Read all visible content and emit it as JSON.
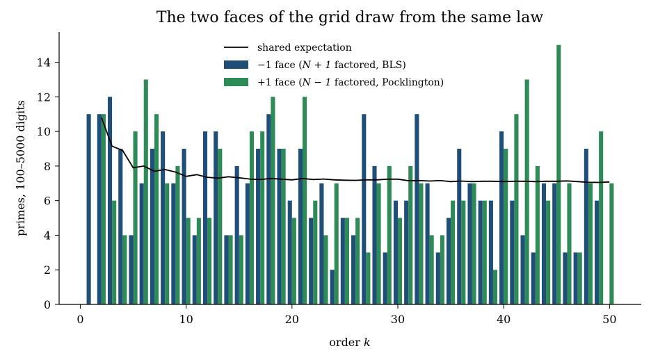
{
  "chart_data": {
    "type": "bar",
    "title": "The two faces of the grid draw from the same law",
    "xlabel": "order k",
    "ylabel": "primes, 100–5000 digits",
    "xlim": [
      -2,
      53
    ],
    "ylim": [
      0,
      15.75
    ],
    "xticks": [
      0,
      10,
      20,
      30,
      40,
      50
    ],
    "yticks": [
      0,
      2,
      4,
      6,
      8,
      10,
      12,
      14
    ],
    "legend_position": "top-center",
    "x": [
      1,
      2,
      3,
      4,
      5,
      6,
      7,
      8,
      9,
      10,
      11,
      12,
      13,
      14,
      15,
      16,
      17,
      18,
      19,
      20,
      21,
      22,
      23,
      24,
      25,
      26,
      27,
      28,
      29,
      30,
      31,
      32,
      33,
      34,
      35,
      36,
      37,
      38,
      39,
      40,
      41,
      42,
      43,
      44,
      45,
      46,
      47,
      48,
      49,
      50
    ],
    "series": [
      {
        "name": "−1 face (N + 1 factored, BLS)",
        "color": "#1f4e79",
        "values": [
          11,
          11,
          12,
          9,
          4,
          7,
          9,
          10,
          7,
          9,
          4,
          10,
          10,
          4,
          8,
          7,
          9,
          11,
          9,
          6,
          9,
          5,
          7,
          2,
          5,
          4,
          11,
          8,
          3,
          6,
          6,
          11,
          7,
          3,
          5,
          9,
          7,
          6,
          6,
          10,
          6,
          4,
          3,
          7,
          7,
          3,
          3,
          9,
          6,
          0
        ]
      },
      {
        "name": "+1 face (N − 1 factored, Pocklington)",
        "color": "#2e8b57",
        "values": [
          0,
          11,
          6,
          4,
          10,
          13,
          11,
          7,
          8,
          5,
          5,
          5,
          9,
          4,
          4,
          10,
          10,
          12,
          9,
          5,
          12,
          6,
          4,
          7,
          5,
          5,
          3,
          7,
          8,
          5,
          8,
          7,
          4,
          4,
          6,
          6,
          7,
          6,
          2,
          9,
          11,
          13,
          8,
          6,
          15,
          7,
          3,
          7,
          10,
          7
        ]
      },
      {
        "name": "shared expectation",
        "color": "#000000",
        "type": "line",
        "x": [
          2,
          3,
          4,
          5,
          6,
          7,
          8,
          9,
          10,
          11,
          12,
          13,
          14,
          15,
          16,
          17,
          18,
          19,
          20,
          21,
          22,
          23,
          24,
          25,
          26,
          27,
          28,
          29,
          30,
          31,
          32,
          33,
          34,
          35,
          36,
          37,
          38,
          39,
          40,
          41,
          42,
          43,
          44,
          45,
          46,
          47,
          48,
          49,
          50
        ],
        "values": [
          10.8,
          9.15,
          8.9,
          7.9,
          8.0,
          7.7,
          7.8,
          7.65,
          7.4,
          7.5,
          7.35,
          7.3,
          7.38,
          7.32,
          7.25,
          7.22,
          7.28,
          7.24,
          7.2,
          7.28,
          7.22,
          7.25,
          7.2,
          7.18,
          7.17,
          7.2,
          7.2,
          7.24,
          7.24,
          7.15,
          7.16,
          7.13,
          7.16,
          7.1,
          7.13,
          7.1,
          7.12,
          7.12,
          7.1,
          7.12,
          7.12,
          7.1,
          7.12,
          7.12,
          7.14,
          7.1,
          7.06,
          7.05,
          7.08
        ]
      }
    ]
  },
  "legend": {
    "line_label": "shared expectation",
    "minus_prefix": "−1 face (",
    "minus_math": "N + 1",
    "minus_suffix": " factored, BLS)",
    "plus_prefix": "+1 face (",
    "plus_math": "N − 1",
    "plus_suffix": " factored, Pocklington)"
  },
  "axis_text": {
    "xlabel_word": "order ",
    "xlabel_var": "k"
  }
}
